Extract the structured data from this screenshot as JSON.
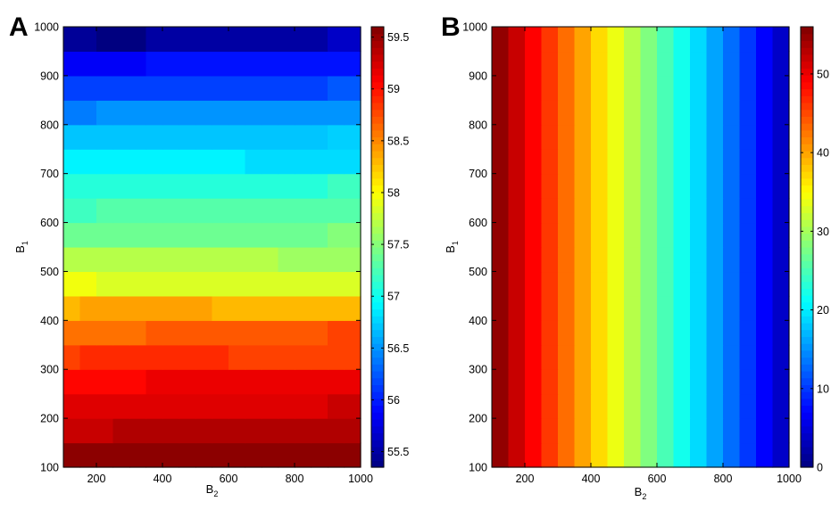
{
  "chart_data": [
    {
      "panel": "A",
      "type": "heatmap",
      "xlabel": "B",
      "xlabel_sub": "2",
      "ylabel": "B",
      "ylabel_sub": "1",
      "xlim": [
        100,
        1000
      ],
      "ylim": [
        100,
        1000
      ],
      "xticks": [
        200,
        400,
        600,
        800,
        1000
      ],
      "yticks": [
        100,
        200,
        300,
        400,
        500,
        600,
        700,
        800,
        900,
        1000
      ],
      "x_edges": [
        100,
        150,
        200,
        250,
        300,
        350,
        400,
        450,
        500,
        550,
        600,
        650,
        700,
        750,
        800,
        850,
        900,
        950,
        1000
      ],
      "y_edges": [
        100,
        150,
        200,
        250,
        300,
        350,
        400,
        450,
        500,
        550,
        600,
        650,
        700,
        750,
        800,
        850,
        900,
        950,
        1000
      ],
      "colormap": "jet",
      "clim": [
        55.35,
        59.6
      ],
      "colorbar_ticks": [
        55.5,
        56,
        56.5,
        57,
        57.5,
        58,
        58.5,
        59,
        59.5
      ],
      "colorbar_tick_labels": [
        "55.5",
        "56",
        "56.5",
        "57",
        "57.5",
        "58",
        "58.5",
        "59",
        "59.5"
      ],
      "values": [
        [
          59.55,
          59.55,
          59.55,
          59.55,
          59.55,
          59.55,
          59.55,
          59.55,
          59.55,
          59.55,
          59.55,
          59.55,
          59.55,
          59.55,
          59.55,
          59.55,
          59.55,
          59.55
        ],
        [
          59.3,
          59.3,
          59.3,
          59.4,
          59.4,
          59.4,
          59.4,
          59.4,
          59.4,
          59.4,
          59.4,
          59.4,
          59.4,
          59.4,
          59.4,
          59.4,
          59.4,
          59.4
        ],
        [
          59.2,
          59.2,
          59.2,
          59.2,
          59.2,
          59.2,
          59.2,
          59.2,
          59.2,
          59.2,
          59.2,
          59.2,
          59.2,
          59.2,
          59.2,
          59.2,
          59.3,
          59.3
        ],
        [
          59.05,
          59.05,
          59.05,
          59.05,
          59.05,
          59.15,
          59.15,
          59.15,
          59.15,
          59.15,
          59.15,
          59.15,
          59.15,
          59.15,
          59.15,
          59.15,
          59.15,
          59.15
        ],
        [
          58.8,
          58.9,
          58.9,
          58.9,
          58.9,
          58.9,
          58.9,
          58.9,
          58.9,
          58.9,
          58.8,
          58.8,
          58.8,
          58.8,
          58.8,
          58.8,
          58.8,
          58.8
        ],
        [
          58.6,
          58.6,
          58.6,
          58.6,
          58.6,
          58.7,
          58.7,
          58.7,
          58.7,
          58.7,
          58.7,
          58.7,
          58.7,
          58.7,
          58.7,
          58.7,
          58.8,
          58.8
        ],
        [
          58.3,
          58.4,
          58.4,
          58.4,
          58.4,
          58.4,
          58.4,
          58.4,
          58.4,
          58.3,
          58.3,
          58.3,
          58.3,
          58.3,
          58.3,
          58.3,
          58.3,
          58.3
        ],
        [
          57.95,
          57.95,
          57.85,
          57.85,
          57.85,
          57.85,
          57.85,
          57.85,
          57.85,
          57.85,
          57.85,
          57.85,
          57.85,
          57.85,
          57.85,
          57.85,
          57.85,
          57.85
        ],
        [
          57.7,
          57.7,
          57.7,
          57.7,
          57.7,
          57.7,
          57.7,
          57.7,
          57.7,
          57.7,
          57.7,
          57.7,
          57.7,
          57.6,
          57.6,
          57.6,
          57.6,
          57.6
        ],
        [
          57.4,
          57.4,
          57.4,
          57.4,
          57.4,
          57.4,
          57.4,
          57.4,
          57.4,
          57.4,
          57.4,
          57.4,
          57.4,
          57.4,
          57.4,
          57.4,
          57.5,
          57.5
        ],
        [
          57.2,
          57.2,
          57.3,
          57.3,
          57.3,
          57.3,
          57.3,
          57.3,
          57.3,
          57.3,
          57.3,
          57.3,
          57.3,
          57.3,
          57.3,
          57.3,
          57.3,
          57.3
        ],
        [
          57.1,
          57.1,
          57.1,
          57.1,
          57.1,
          57.1,
          57.1,
          57.1,
          57.1,
          57.1,
          57.1,
          57.1,
          57.1,
          57.1,
          57.1,
          57.1,
          57.2,
          57.2
        ],
        [
          56.9,
          56.9,
          56.9,
          56.9,
          56.9,
          56.9,
          56.9,
          56.9,
          56.9,
          56.9,
          56.9,
          56.8,
          56.8,
          56.8,
          56.8,
          56.8,
          56.8,
          56.8
        ],
        [
          56.7,
          56.7,
          56.7,
          56.7,
          56.7,
          56.7,
          56.7,
          56.7,
          56.7,
          56.7,
          56.7,
          56.7,
          56.7,
          56.7,
          56.7,
          56.7,
          56.75,
          56.75
        ],
        [
          56.4,
          56.4,
          56.5,
          56.5,
          56.5,
          56.5,
          56.5,
          56.5,
          56.5,
          56.5,
          56.5,
          56.5,
          56.5,
          56.5,
          56.5,
          56.5,
          56.5,
          56.5
        ],
        [
          56.15,
          56.15,
          56.15,
          56.15,
          56.15,
          56.15,
          56.15,
          56.15,
          56.15,
          56.15,
          56.15,
          56.15,
          56.15,
          56.15,
          56.15,
          56.15,
          56.25,
          56.25
        ],
        [
          55.85,
          55.85,
          55.85,
          55.85,
          55.85,
          55.95,
          55.95,
          55.95,
          55.95,
          55.95,
          55.95,
          55.95,
          55.95,
          55.95,
          55.95,
          55.95,
          55.95,
          55.95
        ],
        [
          55.45,
          55.45,
          55.35,
          55.35,
          55.35,
          55.5,
          55.5,
          55.5,
          55.5,
          55.5,
          55.5,
          55.5,
          55.5,
          55.5,
          55.5,
          55.5,
          55.65,
          55.65
        ]
      ]
    },
    {
      "panel": "B",
      "type": "heatmap",
      "xlabel": "B",
      "xlabel_sub": "2",
      "ylabel": "B",
      "ylabel_sub": "1",
      "xlim": [
        100,
        1000
      ],
      "ylim": [
        100,
        1000
      ],
      "xticks": [
        200,
        400,
        600,
        800,
        1000
      ],
      "yticks": [
        100,
        200,
        300,
        400,
        500,
        600,
        700,
        800,
        900,
        1000
      ],
      "x_edges": [
        100,
        150,
        200,
        250,
        300,
        350,
        400,
        450,
        500,
        550,
        600,
        650,
        700,
        750,
        800,
        850,
        900,
        950,
        1000
      ],
      "y_edges": [
        100,
        150,
        200,
        250,
        300,
        350,
        400,
        450,
        500,
        550,
        600,
        650,
        700,
        750,
        800,
        850,
        900,
        950,
        1000
      ],
      "colormap": "jet",
      "clim": [
        0,
        56
      ],
      "colorbar_ticks": [
        0,
        10,
        20,
        30,
        40,
        50
      ],
      "colorbar_tick_labels": [
        "0",
        "10",
        "20",
        "30",
        "40",
        "50"
      ],
      "column_values": [
        55,
        52,
        49,
        46,
        43,
        40,
        37,
        34,
        31,
        28,
        25,
        22,
        19,
        16,
        13,
        10,
        7,
        4
      ]
    }
  ]
}
